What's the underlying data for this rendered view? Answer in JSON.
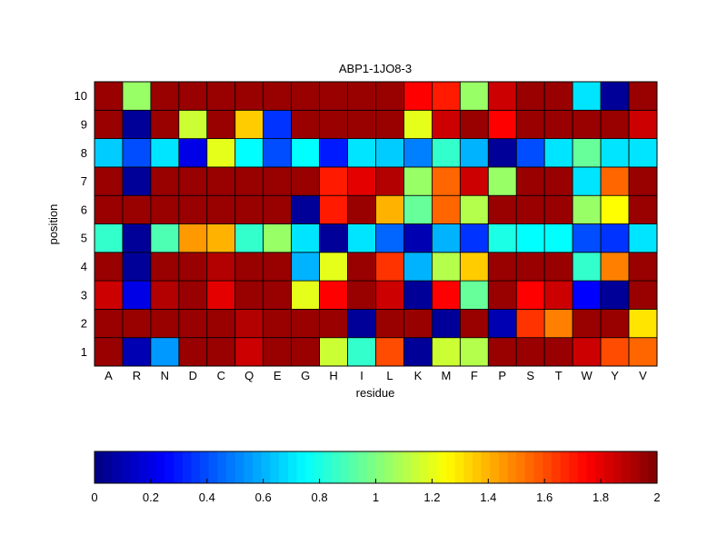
{
  "chart_data": [
    {
      "type": "heatmap",
      "title": "ABP1-1JO8-3",
      "xlabel": "residue",
      "ylabel": "position",
      "x": [
        "A",
        "R",
        "N",
        "D",
        "C",
        "Q",
        "E",
        "G",
        "H",
        "I",
        "L",
        "K",
        "M",
        "F",
        "P",
        "S",
        "T",
        "W",
        "Y",
        "V"
      ],
      "y": [
        "1",
        "2",
        "3",
        "4",
        "5",
        "6",
        "7",
        "8",
        "9",
        "10"
      ],
      "colormap": "jet",
      "clim": [
        0,
        2
      ],
      "grid": false,
      "cell_border_color": "#000000",
      "values": [
        [
          1.95,
          0.1,
          0.55,
          1.95,
          1.95,
          1.85,
          1.95,
          1.95,
          1.15,
          0.85,
          1.6,
          0.05,
          1.15,
          1.1,
          1.95,
          1.95,
          1.95,
          1.85,
          1.6,
          1.55
        ],
        [
          1.95,
          1.95,
          1.95,
          1.95,
          1.95,
          1.9,
          1.95,
          1.95,
          1.95,
          0.05,
          1.95,
          1.95,
          0.05,
          1.95,
          0.1,
          1.65,
          1.5,
          1.95,
          1.95,
          1.3
        ],
        [
          1.85,
          0.2,
          1.9,
          1.95,
          1.8,
          1.95,
          1.95,
          1.2,
          1.75,
          1.95,
          1.85,
          0.05,
          1.75,
          0.95,
          1.95,
          1.75,
          1.85,
          0.25,
          0.05,
          1.95
        ],
        [
          1.95,
          0.05,
          1.95,
          1.95,
          1.9,
          1.95,
          1.95,
          0.6,
          1.2,
          1.95,
          1.65,
          0.6,
          1.1,
          1.35,
          1.95,
          1.95,
          1.95,
          0.85,
          1.5,
          1.95
        ],
        [
          0.85,
          0.05,
          0.9,
          1.45,
          1.4,
          0.85,
          1.05,
          0.7,
          0.05,
          0.7,
          0.45,
          0.1,
          0.6,
          0.35,
          0.8,
          0.75,
          0.75,
          0.4,
          0.35,
          0.7
        ],
        [
          1.95,
          1.95,
          1.95,
          1.95,
          1.95,
          1.95,
          1.95,
          0.05,
          1.7,
          1.95,
          1.4,
          0.95,
          1.55,
          1.1,
          1.95,
          1.95,
          1.95,
          1.05,
          1.25,
          1.95
        ],
        [
          1.95,
          0.05,
          1.95,
          1.95,
          1.95,
          1.95,
          1.95,
          1.95,
          1.7,
          1.8,
          1.9,
          1.05,
          1.55,
          1.85,
          1.05,
          1.95,
          1.95,
          0.7,
          1.55,
          1.95
        ],
        [
          0.65,
          0.4,
          0.7,
          0.2,
          1.2,
          0.75,
          0.4,
          0.75,
          0.3,
          0.7,
          0.65,
          0.5,
          0.85,
          0.6,
          0.05,
          0.4,
          0.7,
          0.95,
          0.7,
          0.7
        ],
        [
          1.95,
          0.05,
          1.95,
          1.15,
          1.95,
          1.35,
          0.35,
          1.95,
          1.95,
          1.95,
          1.95,
          1.2,
          1.85,
          1.95,
          1.75,
          1.95,
          1.95,
          1.95,
          1.95,
          1.85
        ],
        [
          1.95,
          1.05,
          1.95,
          1.95,
          1.95,
          1.95,
          1.95,
          1.95,
          1.95,
          1.95,
          1.95,
          1.75,
          1.7,
          1.05,
          1.85,
          1.95,
          1.95,
          0.7,
          0.05,
          1.95
        ]
      ]
    },
    {
      "type": "colorbar",
      "colormap": "jet",
      "xlim": [
        0,
        2
      ],
      "ticks": [
        0,
        0.2,
        0.4,
        0.6,
        0.8,
        1,
        1.2,
        1.4,
        1.6,
        1.8,
        2
      ],
      "tick_labels": [
        "0",
        "0.2",
        "0.4",
        "0.6",
        "0.8",
        "1",
        "1.2",
        "1.4",
        "1.6",
        "1.8",
        "2"
      ]
    }
  ]
}
